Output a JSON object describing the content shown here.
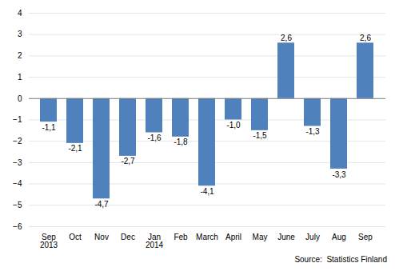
{
  "chart_data": {
    "type": "bar",
    "categories": [
      "Sep\n2013",
      "Oct",
      "Nov",
      "Dec",
      "Jan\n2014",
      "Feb",
      "March",
      "April",
      "May",
      "June",
      "July",
      "Aug",
      "Sep"
    ],
    "values": [
      -1.1,
      -2.1,
      -4.7,
      -2.7,
      -1.6,
      -1.8,
      -4.1,
      -1.0,
      -1.5,
      2.6,
      -1.3,
      -3.3,
      2.6
    ],
    "value_labels": [
      "-1,1",
      "-2,1",
      "-4,7",
      "-2,7",
      "-1,6",
      "-1,8",
      "-4,1",
      "-1,0",
      "-1,5",
      "2,6",
      "-1,3",
      "-3,3",
      "2,6"
    ],
    "color": "#4f81bd",
    "ylim": [
      -6,
      4
    ],
    "yticks": [
      -6,
      -5,
      -4,
      -3,
      -2,
      -1,
      0,
      1,
      2,
      3,
      4
    ],
    "grid": true,
    "data_labels": true,
    "annotations": [
      "Source:  Statistics Finland"
    ]
  }
}
